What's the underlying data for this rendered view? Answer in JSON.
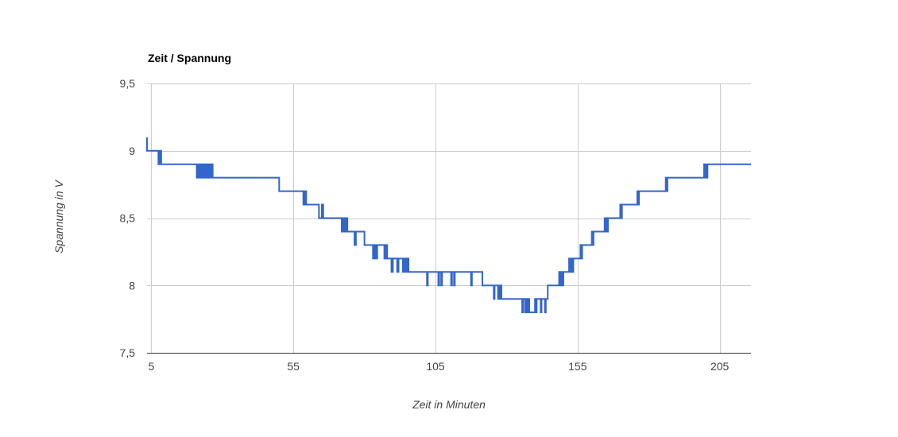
{
  "chart_data": {
    "type": "line",
    "title": "Zeit / Spannung",
    "xlabel": "Zeit in Minuten",
    "ylabel": "Spannung in V",
    "xlim": [
      3.5,
      216
    ],
    "ylim": [
      7.5,
      9.5
    ],
    "x_ticks": [
      5,
      55,
      105,
      155,
      205
    ],
    "x_tick_labels": [
      "5",
      "55",
      "105",
      "155",
      "205"
    ],
    "y_ticks": [
      7.5,
      8,
      8.5,
      9,
      9.5
    ],
    "y_tick_labels": [
      "7,5",
      "8",
      "8,5",
      "9",
      "9,5"
    ],
    "grid": true,
    "legend": "none",
    "series": [
      {
        "color": "#3366cc",
        "points": [
          [
            3.5,
            9.1
          ],
          [
            3.5,
            9.0
          ],
          [
            7.5,
            9.0
          ],
          [
            7.5,
            8.9
          ],
          [
            8,
            8.9
          ],
          [
            8,
            9.0
          ],
          [
            8.5,
            9.0
          ],
          [
            8.5,
            8.9
          ],
          [
            21,
            8.9
          ],
          [
            21,
            8.8
          ],
          [
            21.4,
            8.8
          ],
          [
            21.4,
            8.9
          ],
          [
            21.8,
            8.9
          ],
          [
            21.8,
            8.8
          ],
          [
            22.2,
            8.8
          ],
          [
            22.2,
            8.9
          ],
          [
            22.6,
            8.9
          ],
          [
            22.6,
            8.8
          ],
          [
            23,
            8.8
          ],
          [
            23,
            8.9
          ],
          [
            23.4,
            8.9
          ],
          [
            23.4,
            8.8
          ],
          [
            23.8,
            8.8
          ],
          [
            23.8,
            8.9
          ],
          [
            24.2,
            8.9
          ],
          [
            24.2,
            8.8
          ],
          [
            24.6,
            8.8
          ],
          [
            24.6,
            8.9
          ],
          [
            25,
            8.9
          ],
          [
            25,
            8.8
          ],
          [
            25.4,
            8.8
          ],
          [
            25.4,
            8.9
          ],
          [
            25.8,
            8.9
          ],
          [
            25.8,
            8.8
          ],
          [
            26.2,
            8.8
          ],
          [
            26.2,
            8.9
          ],
          [
            26.6,
            8.9
          ],
          [
            26.6,
            8.8
          ],
          [
            50,
            8.8
          ],
          [
            50,
            8.7
          ],
          [
            58.5,
            8.7
          ],
          [
            58.5,
            8.6
          ],
          [
            59,
            8.6
          ],
          [
            59,
            8.7
          ],
          [
            59.5,
            8.7
          ],
          [
            59.5,
            8.6
          ],
          [
            64,
            8.6
          ],
          [
            64,
            8.5
          ],
          [
            65,
            8.5
          ],
          [
            65,
            8.6
          ],
          [
            65.5,
            8.6
          ],
          [
            65.5,
            8.5
          ],
          [
            72,
            8.5
          ],
          [
            72,
            8.4
          ],
          [
            72.5,
            8.4
          ],
          [
            72.5,
            8.5
          ],
          [
            73,
            8.5
          ],
          [
            73,
            8.4
          ],
          [
            73.5,
            8.4
          ],
          [
            73.5,
            8.5
          ],
          [
            74,
            8.5
          ],
          [
            74,
            8.4
          ],
          [
            76.5,
            8.4
          ],
          [
            76.5,
            8.3
          ],
          [
            77,
            8.3
          ],
          [
            77,
            8.4
          ],
          [
            80,
            8.4
          ],
          [
            80,
            8.3
          ],
          [
            83,
            8.3
          ],
          [
            83,
            8.2
          ],
          [
            83.5,
            8.2
          ],
          [
            83.5,
            8.3
          ],
          [
            84,
            8.3
          ],
          [
            84,
            8.2
          ],
          [
            84.5,
            8.2
          ],
          [
            84.5,
            8.3
          ],
          [
            87,
            8.3
          ],
          [
            87,
            8.2
          ],
          [
            87.5,
            8.2
          ],
          [
            87.5,
            8.3
          ],
          [
            88,
            8.3
          ],
          [
            88,
            8.2
          ],
          [
            89.5,
            8.2
          ],
          [
            89.5,
            8.1
          ],
          [
            90,
            8.1
          ],
          [
            90,
            8.2
          ],
          [
            91.5,
            8.2
          ],
          [
            91.5,
            8.1
          ],
          [
            92,
            8.1
          ],
          [
            92,
            8.2
          ],
          [
            93.5,
            8.2
          ],
          [
            93.5,
            8.1
          ],
          [
            94,
            8.1
          ],
          [
            94,
            8.2
          ],
          [
            94.5,
            8.2
          ],
          [
            94.5,
            8.1
          ],
          [
            95,
            8.1
          ],
          [
            95,
            8.2
          ],
          [
            95.5,
            8.2
          ],
          [
            95.5,
            8.1
          ],
          [
            102,
            8.1
          ],
          [
            102,
            8.0
          ],
          [
            102.3,
            8.0
          ],
          [
            102.3,
            8.1
          ],
          [
            106,
            8.1
          ],
          [
            106,
            8.0
          ],
          [
            106.3,
            8.0
          ],
          [
            106.3,
            8.1
          ],
          [
            107,
            8.1
          ],
          [
            107,
            8.0
          ],
          [
            107.3,
            8.0
          ],
          [
            107.3,
            8.1
          ],
          [
            110.5,
            8.1
          ],
          [
            110.5,
            8.0
          ],
          [
            110.8,
            8.0
          ],
          [
            110.8,
            8.1
          ],
          [
            111.5,
            8.1
          ],
          [
            111.5,
            8.0
          ],
          [
            111.8,
            8.0
          ],
          [
            111.8,
            8.1
          ],
          [
            117.5,
            8.1
          ],
          [
            117.5,
            8.0
          ],
          [
            117.8,
            8.0
          ],
          [
            117.8,
            8.1
          ],
          [
            121.5,
            8.1
          ],
          [
            121.5,
            8.0
          ],
          [
            125.5,
            8.0
          ],
          [
            125.5,
            7.9
          ],
          [
            125.8,
            7.9
          ],
          [
            125.8,
            8.0
          ],
          [
            127,
            8.0
          ],
          [
            127,
            7.9
          ],
          [
            127.3,
            7.9
          ],
          [
            127.3,
            8.0
          ],
          [
            127.6,
            8.0
          ],
          [
            127.6,
            7.9
          ],
          [
            127.9,
            7.9
          ],
          [
            127.9,
            8.0
          ],
          [
            128.2,
            8.0
          ],
          [
            128.2,
            7.9
          ],
          [
            135.5,
            7.9
          ],
          [
            135.5,
            7.8
          ],
          [
            135.8,
            7.8
          ],
          [
            135.8,
            7.9
          ],
          [
            136.5,
            7.9
          ],
          [
            136.5,
            7.8
          ],
          [
            136.8,
            7.8
          ],
          [
            136.8,
            7.9
          ],
          [
            137.2,
            7.9
          ],
          [
            137.2,
            7.8
          ],
          [
            137.5,
            7.8
          ],
          [
            137.5,
            7.9
          ],
          [
            138,
            7.9
          ],
          [
            138,
            7.8
          ],
          [
            140,
            7.8
          ],
          [
            140,
            7.9
          ],
          [
            140.3,
            7.9
          ],
          [
            140.3,
            7.8
          ],
          [
            140.6,
            7.8
          ],
          [
            140.6,
            7.9
          ],
          [
            142,
            7.9
          ],
          [
            142,
            7.8
          ],
          [
            142.3,
            7.8
          ],
          [
            142.3,
            7.9
          ],
          [
            143.5,
            7.9
          ],
          [
            143.5,
            7.8
          ],
          [
            143.8,
            7.8
          ],
          [
            143.8,
            7.9
          ],
          [
            144.5,
            7.9
          ],
          [
            144.5,
            8.0
          ],
          [
            148.5,
            8.0
          ],
          [
            148.5,
            8.1
          ],
          [
            149,
            8.1
          ],
          [
            149,
            8.0
          ],
          [
            149.3,
            8.0
          ],
          [
            149.3,
            8.1
          ],
          [
            149.6,
            8.1
          ],
          [
            149.6,
            8.0
          ],
          [
            150,
            8.0
          ],
          [
            150,
            8.1
          ],
          [
            152,
            8.1
          ],
          [
            152,
            8.2
          ],
          [
            152.5,
            8.2
          ],
          [
            152.5,
            8.1
          ],
          [
            152.8,
            8.1
          ],
          [
            152.8,
            8.2
          ],
          [
            153.2,
            8.2
          ],
          [
            153.2,
            8.1
          ],
          [
            153.5,
            8.1
          ],
          [
            153.5,
            8.2
          ],
          [
            156,
            8.2
          ],
          [
            156,
            8.3
          ],
          [
            156.3,
            8.3
          ],
          [
            156.3,
            8.2
          ],
          [
            156.6,
            8.2
          ],
          [
            156.6,
            8.3
          ],
          [
            160,
            8.3
          ],
          [
            160,
            8.4
          ],
          [
            160.3,
            8.4
          ],
          [
            160.3,
            8.3
          ],
          [
            160.6,
            8.3
          ],
          [
            160.6,
            8.4
          ],
          [
            164.5,
            8.4
          ],
          [
            164.5,
            8.5
          ],
          [
            164.8,
            8.5
          ],
          [
            164.8,
            8.4
          ],
          [
            165.1,
            8.4
          ],
          [
            165.1,
            8.5
          ],
          [
            165.4,
            8.5
          ],
          [
            165.4,
            8.4
          ],
          [
            165.7,
            8.4
          ],
          [
            165.7,
            8.5
          ],
          [
            170,
            8.5
          ],
          [
            170,
            8.6
          ],
          [
            170.3,
            8.6
          ],
          [
            170.3,
            8.5
          ],
          [
            170.6,
            8.5
          ],
          [
            170.6,
            8.6
          ],
          [
            176,
            8.6
          ],
          [
            176,
            8.7
          ],
          [
            176.3,
            8.7
          ],
          [
            176.3,
            8.6
          ],
          [
            176.6,
            8.6
          ],
          [
            176.6,
            8.7
          ],
          [
            186,
            8.7
          ],
          [
            186,
            8.8
          ],
          [
            186.3,
            8.8
          ],
          [
            186.3,
            8.7
          ],
          [
            186.6,
            8.7
          ],
          [
            186.6,
            8.8
          ],
          [
            199.5,
            8.8
          ],
          [
            199.5,
            8.9
          ],
          [
            199.8,
            8.9
          ],
          [
            199.8,
            8.8
          ],
          [
            200.1,
            8.8
          ],
          [
            200.1,
            8.9
          ],
          [
            200.4,
            8.9
          ],
          [
            200.4,
            8.8
          ],
          [
            200.7,
            8.8
          ],
          [
            200.7,
            8.9
          ],
          [
            216,
            8.9
          ]
        ]
      }
    ]
  }
}
